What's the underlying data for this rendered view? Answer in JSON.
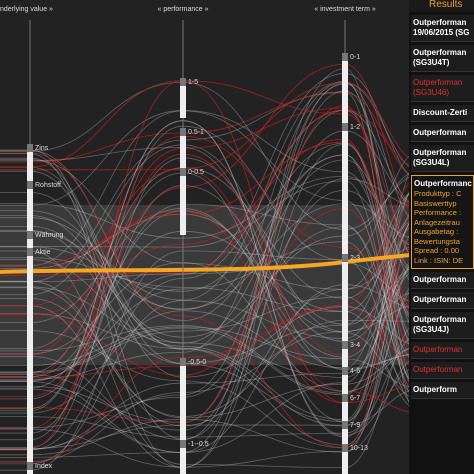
{
  "header": {
    "axes": [
      "nderlying value »",
      "« performance »",
      "« investment term »"
    ],
    "results_title": "Results"
  },
  "axes": [
    {
      "labels": [
        "Zins",
        "Rohstoff",
        "Währung",
        "Aktie",
        "Index"
      ]
    },
    {
      "labels": [
        "1-5",
        "0.5-1",
        "0-0.5",
        "-0.5-0",
        "-1--0.5"
      ]
    },
    {
      "labels": [
        "0-1",
        "1-2",
        "2-3",
        "3-4",
        "4-6",
        "6-7",
        "7-9",
        "10-13"
      ]
    }
  ],
  "results": [
    {
      "lines": [
        "Outperforman",
        "19/06/2015 (SG"
      ],
      "red": false
    },
    {
      "lines": [
        "Outperforman",
        "(SG3U4T)"
      ],
      "red": false
    },
    {
      "lines": [
        "Outperforman",
        "(SG3U46)"
      ],
      "red": true
    },
    {
      "lines": [
        "Discount-Zerti"
      ],
      "red": false
    },
    {
      "lines": [
        "Outperforman"
      ],
      "red": false
    },
    {
      "lines": [
        "Outperforman",
        "(SG3U4L)"
      ],
      "red": false
    },
    {
      "lines": [
        "Outperformanc",
        "Produkttyp : C",
        "Basiswerttyp",
        "Performance :",
        "Anlagezeitrau",
        "Ausgabetag :",
        "Bewertungsta",
        "Spread : 0.00",
        "Link : ISIN: DE"
      ],
      "red": false,
      "open": true
    },
    {
      "lines": [
        "Outperforman"
      ],
      "red": false
    },
    {
      "lines": [
        "Outperforman"
      ],
      "red": false
    },
    {
      "lines": [
        "Outperforman",
        "(SG3U4J)"
      ],
      "red": false
    },
    {
      "lines": [
        "Outperforman"
      ],
      "red": true
    },
    {
      "lines": [
        "Outperforman"
      ],
      "red": true
    },
    {
      "lines": [
        "Outperform"
      ],
      "red": false
    }
  ]
}
